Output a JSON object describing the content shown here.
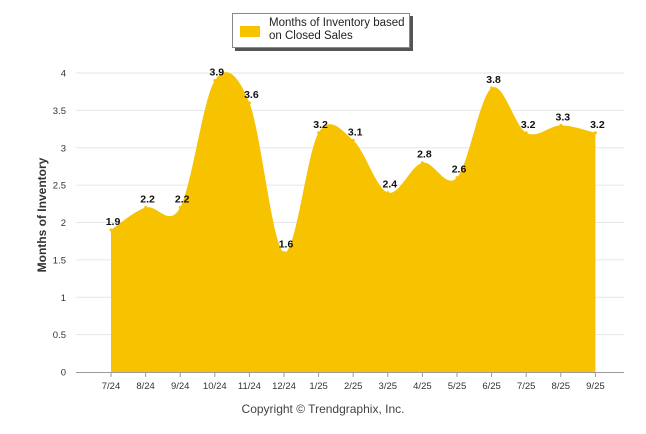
{
  "chart_data": {
    "type": "area",
    "categories": [
      "7/24",
      "8/24",
      "9/24",
      "10/24",
      "11/24",
      "12/24",
      "1/25",
      "2/25",
      "3/25",
      "4/25",
      "5/25",
      "6/25",
      "7/25",
      "8/25",
      "9/25"
    ],
    "series": [
      {
        "name": "Months of Inventory based on Closed Sales",
        "values": [
          1.9,
          2.2,
          2.2,
          3.9,
          3.6,
          1.6,
          3.2,
          3.1,
          2.4,
          2.8,
          2.6,
          3.8,
          3.2,
          3.3,
          3.2
        ],
        "labels": [
          "1.9",
          "2.2",
          "2.2",
          "3.9",
          "3.6",
          "1.6",
          "3.2",
          "3.1",
          "2.4",
          "2.8",
          "2.6",
          "3.8",
          "3.2",
          "3.3",
          "3.2"
        ]
      }
    ],
    "ylabel": "Months of Inventory",
    "yticks": [
      "0",
      "0.5",
      "1",
      "1.5",
      "2",
      "2.5",
      "3",
      "3.5",
      "4"
    ],
    "ylim": [
      0,
      4
    ],
    "grid": true,
    "legend_position": "top-center",
    "fill_color": "#F7C200"
  },
  "copyright": "Copyright © Trendgraphix, Inc."
}
